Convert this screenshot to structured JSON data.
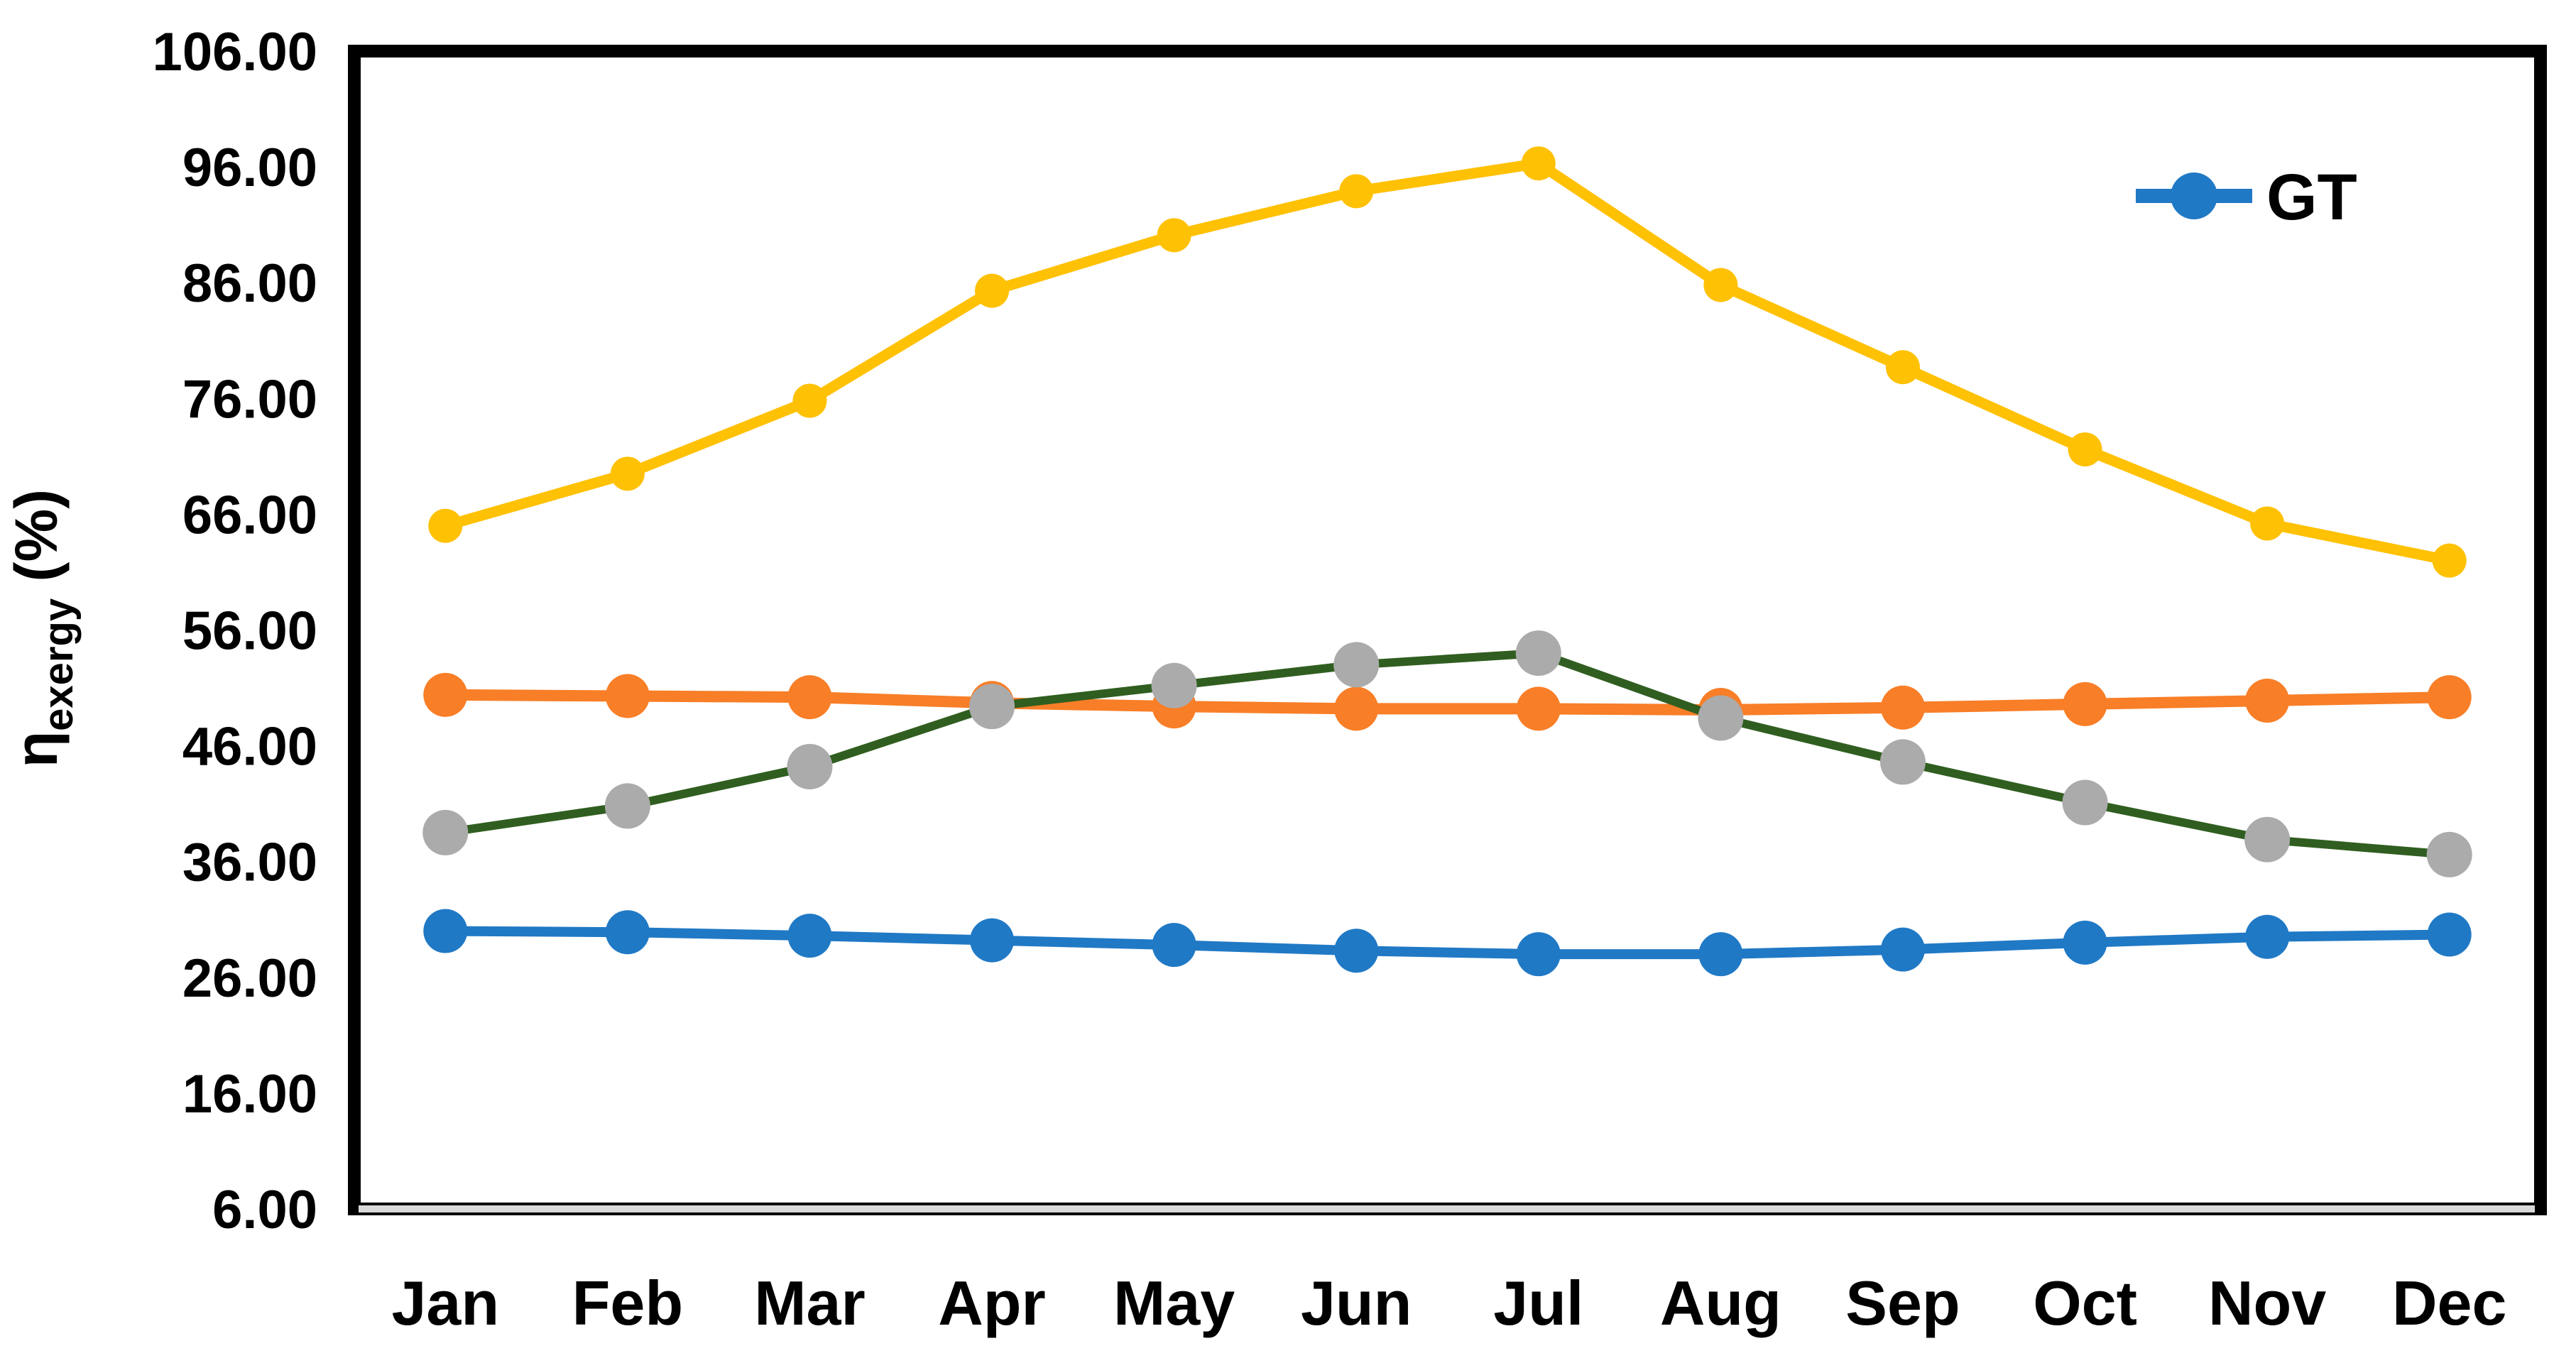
{
  "figure": {
    "background": "#ffffff",
    "frame_color": "#000000",
    "axis_double_line_color": "#d9d9d9"
  },
  "y_axis": {
    "title_symbol": "η",
    "title_subscript": "exergy",
    "title_suffix": " (%)",
    "tick_labels": [
      "106.00",
      "96.00",
      "86.00",
      "76.00",
      "66.00",
      "56.00",
      "46.00",
      "36.00",
      "26.00",
      "16.00",
      "6.00"
    ],
    "max": 106,
    "min": 6,
    "step": 10
  },
  "x_axis": {
    "categories": [
      "Jan",
      "Feb",
      "Mar",
      "Apr",
      "May",
      "Jun",
      "Jul",
      "Aug",
      "Sep",
      "Oct",
      "Nov",
      "Dec"
    ]
  },
  "legend": {
    "items": [
      {
        "label": "GT",
        "color": "#2079C5"
      }
    ]
  },
  "chart_data": {
    "type": "line",
    "title": "",
    "xlabel": "",
    "ylabel": "η_exergy (%)",
    "ylim": [
      6,
      106
    ],
    "y_step": 10,
    "grid": false,
    "legend_position": "top-right",
    "categories": [
      "Jan",
      "Feb",
      "Mar",
      "Apr",
      "May",
      "Jun",
      "Jul",
      "Aug",
      "Sep",
      "Oct",
      "Nov",
      "Dec"
    ],
    "series": [
      {
        "name": "",
        "line_color": "#F87E27",
        "marker_color": "#F87E27",
        "line_width": 16,
        "marker_radius": 31,
        "values": [
          50.4,
          50.3,
          50.2,
          49.7,
          49.4,
          49.2,
          49.2,
          49.1,
          49.3,
          49.6,
          49.9,
          50.2
        ]
      },
      {
        "name": "",
        "line_color": "#305E20",
        "marker_color": "#ABABAB",
        "line_width": 12,
        "marker_radius": 32,
        "values": [
          38.5,
          40.8,
          44.2,
          49.4,
          51.2,
          53.0,
          54.0,
          48.4,
          44.6,
          41.1,
          37.9,
          36.6
        ]
      },
      {
        "name": "",
        "line_color": "#FFC104",
        "marker_color": "#FFC104",
        "line_width": 15,
        "marker_radius": 24,
        "values": [
          65.0,
          69.5,
          75.8,
          85.3,
          90.1,
          93.9,
          96.3,
          85.8,
          78.7,
          71.6,
          65.2,
          62.0
        ]
      },
      {
        "name": "GT",
        "line_color": "#2079C5",
        "marker_color": "#2079C5",
        "line_width": 14,
        "marker_radius": 31,
        "values": [
          30.0,
          29.9,
          29.6,
          29.2,
          28.8,
          28.3,
          28.0,
          28.0,
          28.4,
          29.0,
          29.5,
          29.7
        ]
      }
    ]
  }
}
